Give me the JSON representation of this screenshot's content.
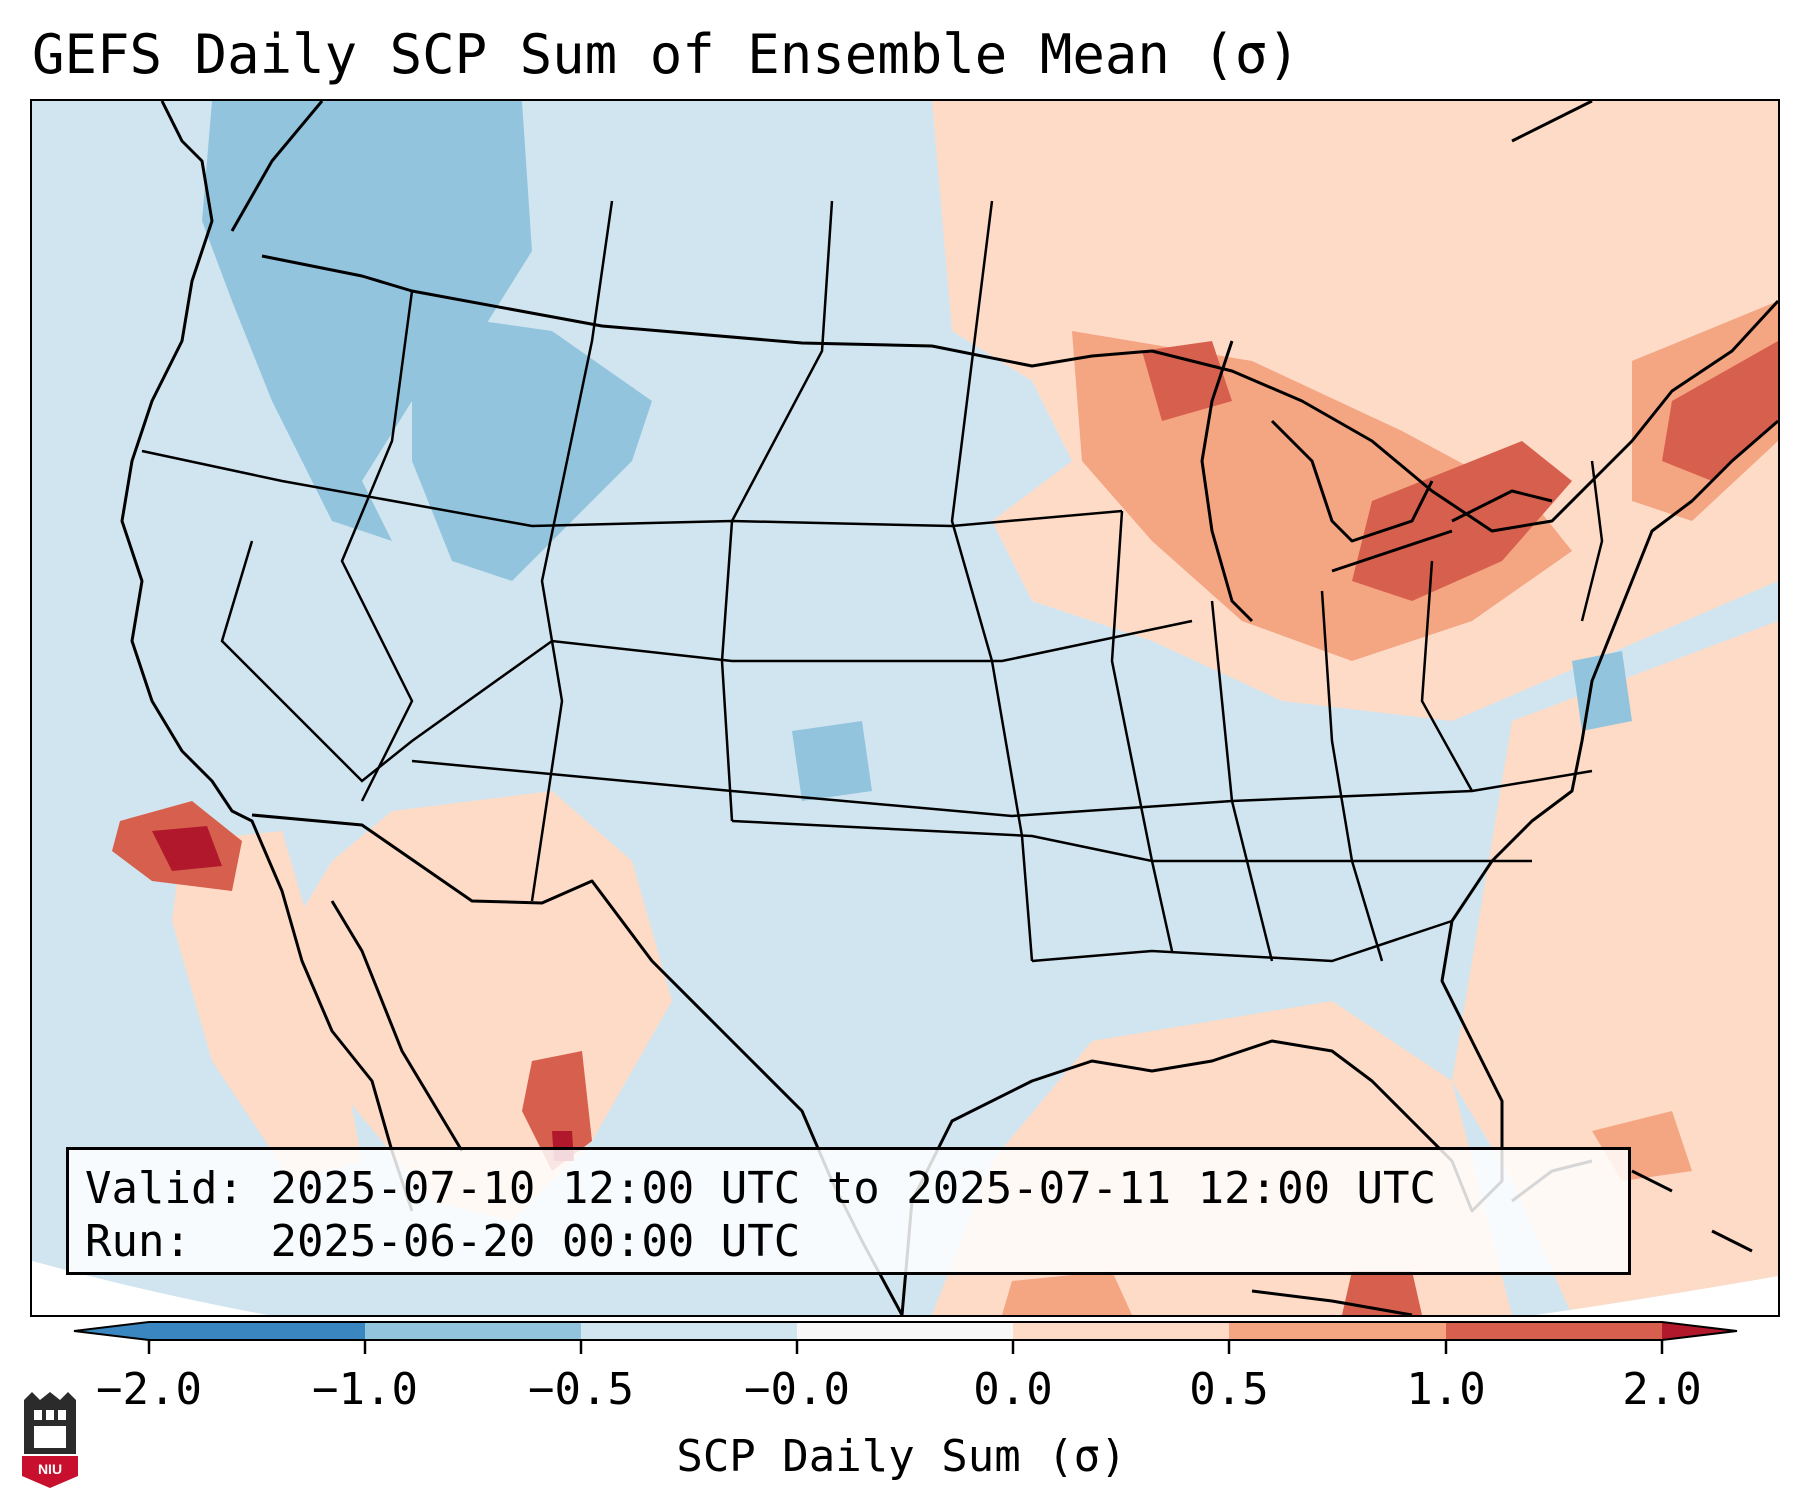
{
  "title": "GEFS Daily SCP Sum of Ensemble Mean (σ)",
  "info": {
    "valid_label": "Valid:",
    "valid_value": "2025-07-10 12:00 UTC to 2025-07-11 12:00 UTC",
    "run_label": "Run:",
    "run_value": "2025-06-20 00:00 UTC"
  },
  "colorbar": {
    "label": "SCP Daily Sum (σ)",
    "ticks": [
      "−2.0",
      "−1.0",
      "−0.5",
      "−0.0",
      "0.0",
      "0.5",
      "1.0",
      "2.0"
    ],
    "colors": [
      "#3a86c0",
      "#93c4de",
      "#d1e5f0",
      "#f7f7f7",
      "#fddbc7",
      "#f4a582",
      "#d6604d",
      "#b2182b"
    ]
  },
  "map": {
    "background_color": "#d1e5f0",
    "anomaly_regions": [
      {
        "name": "pacific-northwest-negative",
        "level": -1.0
      },
      {
        "name": "idaho-montana-negative",
        "level": -1.0
      },
      {
        "name": "great-lakes-positive",
        "level": 1.0
      },
      {
        "name": "new-england-positive",
        "level": 1.0
      },
      {
        "name": "baja-california-positive",
        "level": 2.0
      },
      {
        "name": "southwest-positive",
        "level": 0.5
      }
    ]
  },
  "logo": {
    "text": "NIU"
  }
}
